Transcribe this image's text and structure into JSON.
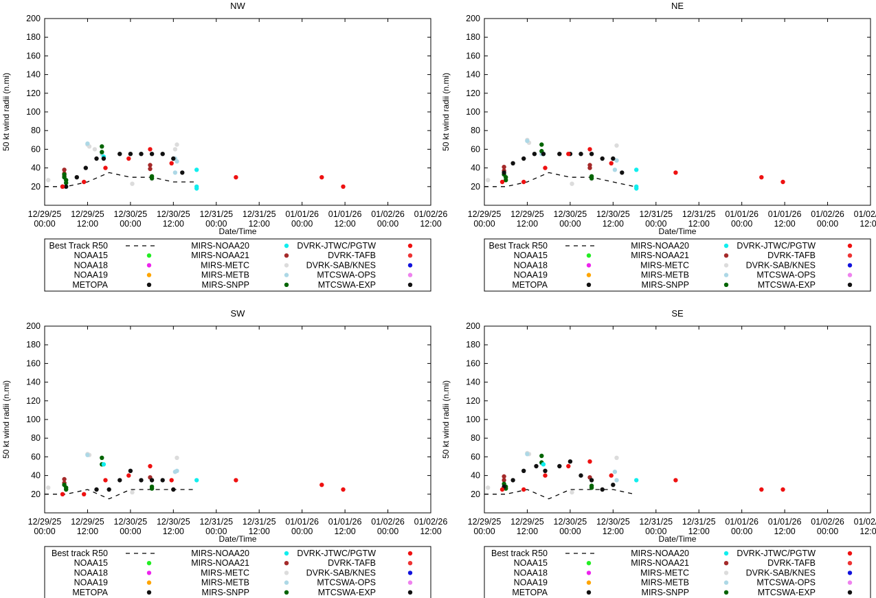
{
  "x_tick_labels": [
    [
      "12/29/25",
      "00:00"
    ],
    [
      "12/29/25",
      "12:00"
    ],
    [
      "12/30/25",
      "00:00"
    ],
    [
      "12/30/25",
      "12:00"
    ],
    [
      "12/31/25",
      "00:00"
    ],
    [
      "12/31/25",
      "12:00"
    ],
    [
      "01/01/26",
      "00:00"
    ],
    [
      "01/01/26",
      "12:00"
    ],
    [
      "01/02/26",
      "00:00"
    ],
    [
      "01/02/26",
      "12:00"
    ]
  ],
  "x_tick_hours": [
    0,
    12,
    24,
    36,
    48,
    60,
    72,
    84,
    96,
    108
  ],
  "colors": {
    "NOAA15": "#22ee22",
    "NOAA18": "#ee22ee",
    "NOAA19": "#ffa500",
    "METOPA": "#111111",
    "MIRS-NOAA20": "#11eeee",
    "MIRS-NOAA21": "#a52a2a",
    "MIRS-METC": "#dcdcdc",
    "MIRS-METB": "#add8e6",
    "MIRS-SNPP": "#006400",
    "DVRK-JTWC/PGTW": "#ee1111",
    "DVRK-TAFB": "#ee3333",
    "DVRK-SAB/KNES": "#1111dd",
    "MTCSWA-OPS": "#ee82ee",
    "MTCSWA-EXP": "#111111"
  },
  "chart_data": [
    {
      "type": "scatter",
      "title": "NW",
      "xlabel": "Date/Time",
      "ylabel": "50 kt wind radii (n.mi)",
      "ylim": [
        0,
        200
      ],
      "yticks": [
        20,
        40,
        60,
        80,
        100,
        120,
        140,
        160,
        180,
        200
      ],
      "xlim_hours": [
        0,
        108
      ],
      "legend": {
        "columns": [
          [
            "Best Track R50",
            "NOAA15",
            "NOAA18",
            "NOAA19",
            "METOPA"
          ],
          [
            "MIRS-NOAA20",
            "MIRS-NOAA21",
            "MIRS-METC",
            "MIRS-METB",
            "MIRS-SNPP"
          ],
          [
            "DVRK-JTWC/PGTW",
            "DVRK-TAFB",
            "DVRK-SAB/KNES",
            "MTCSWA-OPS",
            "MTCSWA-EXP"
          ]
        ]
      },
      "best_track": {
        "name": "Best Track R50",
        "x": [
          0,
          6,
          12,
          18,
          24,
          30,
          36,
          42
        ],
        "y": [
          20,
          20,
          25,
          35,
          30,
          30,
          25,
          25
        ]
      },
      "series": [
        {
          "name": "MIRS-METC",
          "x": [
            1,
            12,
            12.5,
            14,
            24.5,
            30,
            36.5,
            37
          ],
          "y": [
            27,
            65,
            63,
            60,
            23,
            28,
            60,
            65
          ]
        },
        {
          "name": "MIRS-METB",
          "x": [
            12,
            16,
            36.5,
            37,
            36.5
          ],
          "y": [
            66,
            55,
            35,
            47,
            50
          ]
        },
        {
          "name": "MIRS-NOAA21",
          "x": [
            5.5,
            5.5,
            5.5,
            29.5,
            29.5
          ],
          "y": [
            38,
            34,
            31,
            43,
            39
          ]
        },
        {
          "name": "MIRS-SNPP",
          "x": [
            5.5,
            5.5,
            6,
            6,
            16,
            16,
            30,
            30
          ],
          "y": [
            33,
            30,
            27,
            24,
            63,
            57,
            31,
            29
          ]
        },
        {
          "name": "MIRS-NOAA20",
          "x": [
            16.5,
            42.5,
            42.5,
            42.5
          ],
          "y": [
            52,
            38,
            20,
            18
          ]
        },
        {
          "name": "METOPA",
          "x": [
            5,
            6,
            9,
            11.5,
            14.5,
            16.5,
            21,
            24,
            27,
            30,
            33,
            36,
            38.5
          ],
          "y": [
            20,
            20,
            30,
            40,
            50,
            50,
            55,
            55,
            55,
            55,
            55,
            50,
            35
          ]
        },
        {
          "name": "MTCSWA-EXP",
          "x": [],
          "y": []
        },
        {
          "name": "DVRK-JTWC/PGTW",
          "x": [
            5,
            11,
            17,
            23.5,
            29.5,
            35.5,
            53.5,
            77.5,
            83.5
          ],
          "y": [
            20,
            25,
            40,
            50,
            60,
            45,
            30,
            30,
            20
          ]
        }
      ]
    },
    {
      "type": "scatter",
      "title": "NE",
      "xlabel": "Date/Time",
      "ylabel": "50 kt wind radii (n.mi)",
      "ylim": [
        0,
        200
      ],
      "yticks": [
        20,
        40,
        60,
        80,
        100,
        120,
        140,
        160,
        180,
        200
      ],
      "xlim_hours": [
        0,
        108
      ],
      "legend": {
        "columns": [
          [
            "Best Track R50",
            "NOAA15",
            "NOAA18",
            "NOAA19",
            "METOPA"
          ],
          [
            "MIRS-NOAA20",
            "MIRS-NOAA21",
            "MIRS-METC",
            "MIRS-METB",
            "MIRS-SNPP"
          ],
          [
            "DVRK-JTWC/PGTW",
            "DVRK-TAFB",
            "DVRK-SAB/KNES",
            "MTCSWA-OPS",
            "MTCSWA-EXP"
          ]
        ]
      },
      "best_track": {
        "name": "Best Track R50",
        "x": [
          0,
          6,
          12,
          18,
          24,
          30,
          36,
          42
        ],
        "y": [
          20,
          20,
          25,
          35,
          30,
          30,
          25,
          20
        ]
      },
      "series": [
        {
          "name": "MIRS-METC",
          "x": [
            1,
            12,
            12.5,
            24.5,
            30,
            37
          ],
          "y": [
            27,
            70,
            67,
            23,
            28,
            64
          ]
        },
        {
          "name": "MIRS-METB",
          "x": [
            12,
            16,
            36.5,
            37
          ],
          "y": [
            69,
            55,
            38,
            48
          ]
        },
        {
          "name": "MIRS-NOAA21",
          "x": [
            5.5,
            5.5,
            29.5,
            29.5
          ],
          "y": [
            41,
            37,
            43,
            40
          ]
        },
        {
          "name": "MIRS-SNPP",
          "x": [
            5.5,
            6,
            6,
            16,
            16,
            30,
            30
          ],
          "y": [
            33,
            30,
            27,
            65,
            58,
            31,
            29
          ]
        },
        {
          "name": "MIRS-NOAA20",
          "x": [
            16.5,
            42.5,
            42.5,
            42.5
          ],
          "y": [
            55,
            38,
            20,
            18
          ]
        },
        {
          "name": "METOPA",
          "x": [
            5.5,
            8,
            11,
            14,
            16.5,
            21,
            24,
            27,
            30,
            33,
            36,
            38.5
          ],
          "y": [
            35,
            45,
            50,
            55,
            55,
            55,
            55,
            55,
            55,
            50,
            50,
            35
          ]
        },
        {
          "name": "MTCSWA-EXP",
          "x": [],
          "y": []
        },
        {
          "name": "DVRK-JTWC/PGTW",
          "x": [
            5,
            11,
            17,
            23.5,
            29.5,
            35.5,
            53.5,
            77.5,
            83.5
          ],
          "y": [
            25,
            25,
            40,
            55,
            60,
            45,
            35,
            30,
            25
          ]
        }
      ]
    },
    {
      "type": "scatter",
      "title": "SW",
      "xlabel": "Date/Time",
      "ylabel": "50 kt wind radii (n.mi)",
      "ylim": [
        0,
        200
      ],
      "yticks": [
        20,
        40,
        60,
        80,
        100,
        120,
        140,
        160,
        180,
        200
      ],
      "xlim_hours": [
        0,
        108
      ],
      "legend": {
        "columns": [
          [
            "Best track R50",
            "NOAA15",
            "NOAA18",
            "NOAA19",
            "METOPA"
          ],
          [
            "MIRS-NOAA20",
            "MIRS-NOAA21",
            "MIRS-METC",
            "MIRS-METB",
            "MIRS-SNPP"
          ],
          [
            "DVRK-JTWC/PGTW",
            "DVRK-TAFB",
            "DVRK-SAB/KNES",
            "MTCSWA-OPS",
            "MTCSWA-EXP"
          ]
        ]
      },
      "best_track": {
        "name": "Best track R50",
        "x": [
          0,
          6,
          12,
          15,
          18,
          24,
          30,
          36,
          42
        ],
        "y": [
          20,
          20,
          25,
          20,
          15,
          25,
          25,
          25,
          25
        ]
      },
      "series": [
        {
          "name": "MIRS-METC",
          "x": [
            1,
            12,
            12.5,
            24.5,
            37
          ],
          "y": [
            27,
            63,
            62,
            22,
            59
          ]
        },
        {
          "name": "MIRS-METB",
          "x": [
            12,
            16,
            36.5,
            37
          ],
          "y": [
            62,
            52,
            44,
            45
          ]
        },
        {
          "name": "MIRS-NOAA21",
          "x": [
            5.5,
            5.5,
            29.5
          ],
          "y": [
            36,
            32,
            38
          ]
        },
        {
          "name": "MIRS-SNPP",
          "x": [
            5.5,
            6,
            6,
            16,
            16,
            30,
            30
          ],
          "y": [
            30,
            27,
            25,
            59,
            52,
            28,
            26
          ]
        },
        {
          "name": "MIRS-NOAA20",
          "x": [
            16.5,
            42.5
          ],
          "y": [
            52,
            35
          ]
        },
        {
          "name": "METOPA",
          "x": [
            14.5,
            18,
            21,
            24,
            27,
            30,
            33,
            36
          ],
          "y": [
            25,
            25,
            35,
            45,
            35,
            35,
            35,
            25
          ]
        },
        {
          "name": "MTCSWA-EXP",
          "x": [],
          "y": []
        },
        {
          "name": "DVRK-JTWC/PGTW",
          "x": [
            5,
            11,
            17,
            23.5,
            29.5,
            35.5,
            53.5,
            77.5,
            83.5
          ],
          "y": [
            20,
            20,
            35,
            40,
            50,
            35,
            35,
            30,
            25
          ]
        }
      ]
    },
    {
      "type": "scatter",
      "title": "SE",
      "xlabel": "Date/Time",
      "ylabel": "50 kt wind radii (n.mi)",
      "ylim": [
        0,
        200
      ],
      "yticks": [
        20,
        40,
        60,
        80,
        100,
        120,
        140,
        160,
        180,
        200
      ],
      "xlim_hours": [
        0,
        108
      ],
      "legend": {
        "columns": [
          [
            "Best track R50",
            "NOAA15",
            "NOAA18",
            "NOAA19",
            "METOPA"
          ],
          [
            "MIRS-NOAA20",
            "MIRS-NOAA21",
            "MIRS-METC",
            "MIRS-METB",
            "MIRS-SNPP"
          ],
          [
            "DVRK-JTWC/PGTW",
            "DVRK-TAFB",
            "DVRK-SAB/KNES",
            "MTCSWA-OPS",
            "MTCSWA-EXP"
          ]
        ]
      },
      "best_track": {
        "name": "Best track R50",
        "x": [
          0,
          6,
          12,
          15,
          18,
          24,
          30,
          36,
          42
        ],
        "y": [
          20,
          20,
          25,
          20,
          15,
          25,
          25,
          25,
          20
        ]
      },
      "series": [
        {
          "name": "MIRS-METC",
          "x": [
            1,
            12,
            12.5,
            24.5,
            37
          ],
          "y": [
            27,
            64,
            63,
            22,
            59
          ]
        },
        {
          "name": "MIRS-METB",
          "x": [
            12,
            16,
            36.5,
            37
          ],
          "y": [
            63,
            53,
            44,
            35
          ]
        },
        {
          "name": "MIRS-NOAA21",
          "x": [
            5.5,
            5.5,
            29.5
          ],
          "y": [
            39,
            35,
            38
          ]
        },
        {
          "name": "MIRS-SNPP",
          "x": [
            5.5,
            6,
            6,
            16,
            16,
            30,
            30
          ],
          "y": [
            31,
            28,
            26,
            61,
            54,
            29,
            27
          ]
        },
        {
          "name": "MIRS-NOAA20",
          "x": [
            16.5,
            42.5
          ],
          "y": [
            52,
            35
          ]
        },
        {
          "name": "METOPA",
          "x": [
            5.5,
            8,
            11,
            14.5,
            17,
            21,
            24,
            27,
            30,
            33,
            36
          ],
          "y": [
            28,
            35,
            45,
            50,
            45,
            50,
            55,
            40,
            35,
            25,
            30
          ]
        },
        {
          "name": "MTCSWA-EXP",
          "x": [],
          "y": []
        },
        {
          "name": "DVRK-JTWC/PGTW",
          "x": [
            5,
            11,
            17,
            23.5,
            29.5,
            35.5,
            53.5,
            77.5,
            83.5
          ],
          "y": [
            25,
            25,
            40,
            50,
            55,
            40,
            35,
            25,
            25
          ]
        }
      ]
    }
  ]
}
